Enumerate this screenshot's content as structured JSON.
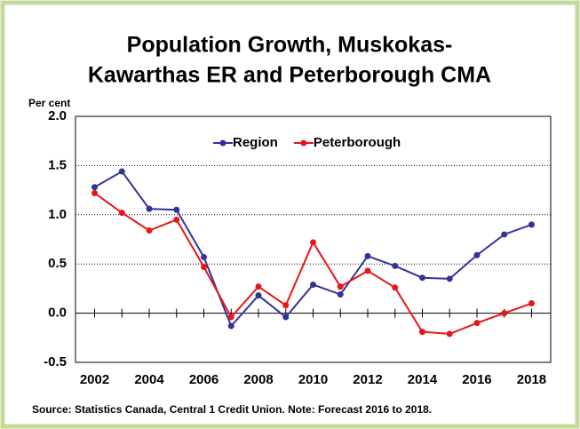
{
  "chart_data": {
    "type": "line",
    "title": [
      "Population Growth, Muskokas-",
      "Kawarthas ER and Peterborough CMA"
    ],
    "y_label": "Per cent",
    "source": "Source: Statistics Canada, Central 1 Credit Union.  Note: Forecast 2016 to 2018.",
    "x": [
      2002,
      2003,
      2004,
      2005,
      2006,
      2007,
      2008,
      2009,
      2010,
      2011,
      2012,
      2013,
      2014,
      2015,
      2016,
      2017,
      2018
    ],
    "series": [
      {
        "name": "Region",
        "color": "#333399",
        "values": [
          1.28,
          1.44,
          1.06,
          1.05,
          0.57,
          -0.13,
          0.18,
          -0.04,
          0.29,
          0.19,
          0.58,
          0.48,
          0.36,
          0.35,
          0.59,
          0.8,
          0.9
        ]
      },
      {
        "name": "Peterborough",
        "color": "#e8161b",
        "values": [
          1.22,
          1.02,
          0.84,
          0.95,
          0.47,
          -0.04,
          0.27,
          0.08,
          0.72,
          0.27,
          0.43,
          0.26,
          -0.19,
          -0.21,
          -0.1,
          0.0,
          0.1
        ]
      }
    ],
    "xlim": [
      2001.3,
      2018.7
    ],
    "xticks": [
      2002,
      2004,
      2006,
      2008,
      2010,
      2012,
      2014,
      2016,
      2018
    ],
    "ylim": [
      -0.5,
      2.0
    ],
    "yticks": [
      {
        "value": -0.5,
        "label": "-0.5"
      },
      {
        "value": 0,
        "label": "0.0"
      },
      {
        "value": 0.5,
        "label": "0.5"
      },
      {
        "value": 1,
        "label": "1.0"
      },
      {
        "value": 1.5,
        "label": "1.5"
      },
      {
        "value": 2,
        "label": "2.0"
      }
    ],
    "grid": true,
    "legend": "top"
  }
}
